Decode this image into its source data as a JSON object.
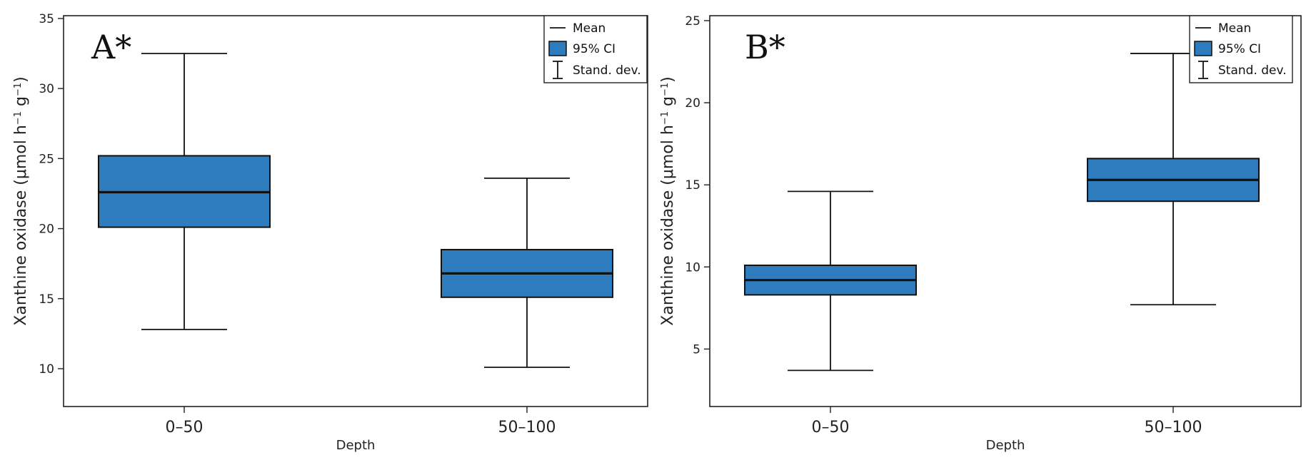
{
  "colors": {
    "box_fill": "#2e7bbd",
    "stroke": "#111111"
  },
  "legend": {
    "mean": "Mean",
    "ci": "95% CI",
    "sd": "Stand. dev."
  },
  "chart_data": [
    {
      "type": "box",
      "panel_label": "A*",
      "xlabel": "Depth",
      "ylabel": "Xanthine oxidase (μmol h⁻¹ g⁻¹)",
      "ylabel_parts": {
        "main": "Xanthine oxidase (μmol h",
        "sup1": "−1",
        "mid": " g",
        "sup2": "−1",
        "end": ")"
      },
      "ylim": [
        7.3,
        35.2
      ],
      "yticks": [
        10,
        15,
        20,
        25,
        30,
        35
      ],
      "yticklabels": [
        "10",
        "15",
        "20",
        "25",
        "30",
        "35"
      ],
      "categories": [
        "0–50",
        "50–100"
      ],
      "boxes": [
        {
          "category": "0–50",
          "mean": 22.6,
          "ci_low": 20.1,
          "ci_high": 25.2,
          "sd_low": 12.8,
          "sd_high": 32.5
        },
        {
          "category": "50–100",
          "mean": 16.8,
          "ci_low": 15.1,
          "ci_high": 18.5,
          "sd_low": 10.1,
          "sd_high": 23.6
        }
      ]
    },
    {
      "type": "box",
      "panel_label": "B*",
      "xlabel": "Depth",
      "ylabel": "Xanthine oxidase (μmol h⁻¹ g⁻¹)",
      "ylabel_parts": {
        "main": "Xanthine oxidase (μmol h",
        "sup1": "−1",
        "mid": " g",
        "sup2": "−1",
        "end": ")"
      },
      "ylim": [
        1.5,
        25.3
      ],
      "yticks": [
        5,
        10,
        15,
        20,
        25
      ],
      "yticklabels": [
        "5",
        "10",
        "15",
        "20",
        "25"
      ],
      "categories": [
        "0–50",
        "50–100"
      ],
      "boxes": [
        {
          "category": "0–50",
          "mean": 9.2,
          "ci_low": 8.3,
          "ci_high": 10.1,
          "sd_low": 3.7,
          "sd_high": 14.6
        },
        {
          "category": "50–100",
          "mean": 15.3,
          "ci_low": 14.0,
          "ci_high": 16.6,
          "sd_low": 7.7,
          "sd_high": 23.0
        }
      ]
    }
  ]
}
